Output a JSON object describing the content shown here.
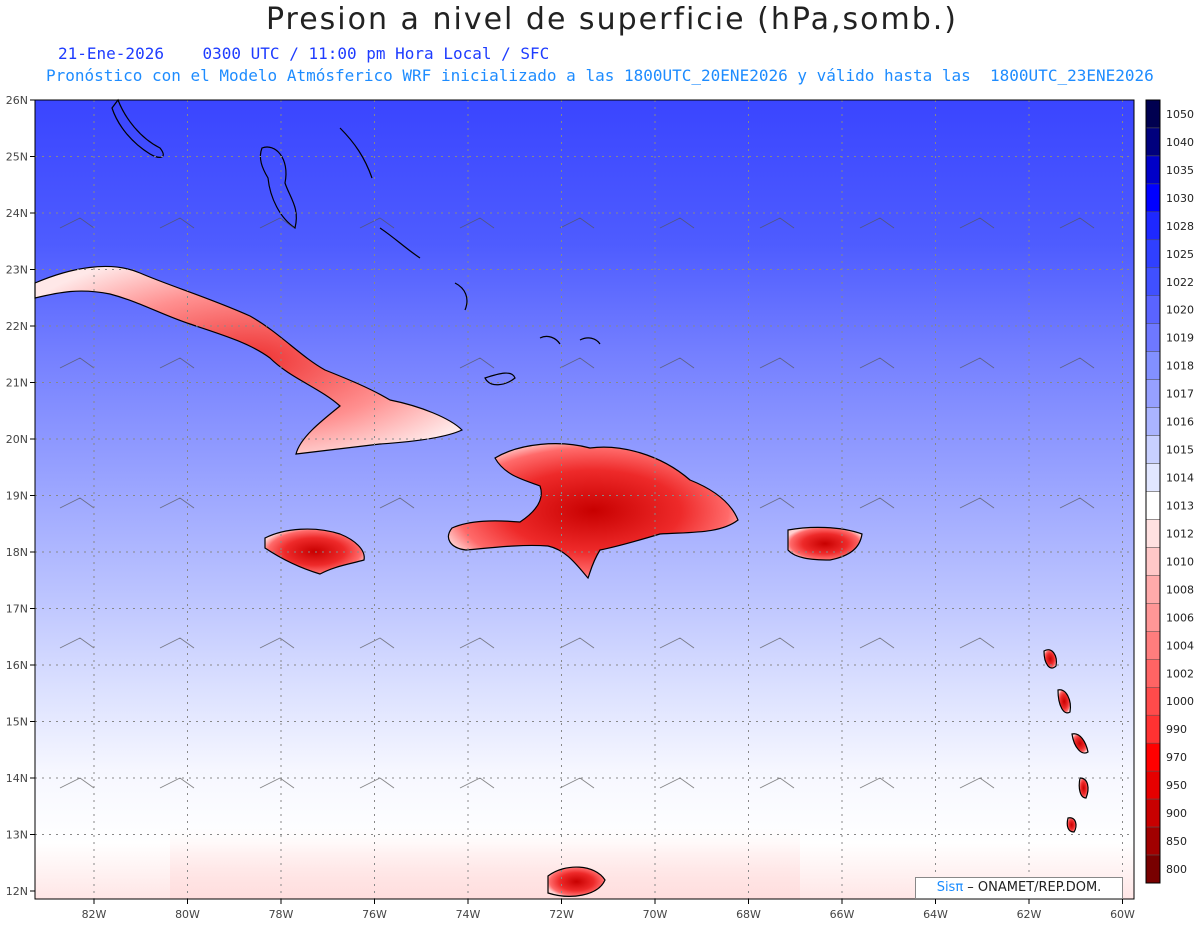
{
  "title": "Presion a nivel de superficie (hPa,somb.)",
  "date": "21-Ene-2026",
  "time_info": "0300 UTC / 11:00 pm Hora Local / SFC",
  "forecast_info": "Pronóstico con el Modelo Atmósferico WRF inicializado a las 1800UTC_20ENE2026 y válido hasta las  1800UTC_23ENE2026",
  "map": {
    "lat_labels": [
      "26N",
      "25N",
      "24N",
      "23N",
      "22N",
      "21N",
      "20N",
      "19N",
      "18N",
      "17N",
      "16N",
      "15N",
      "14N",
      "13N",
      "12N"
    ],
    "lon_labels": [
      "82W",
      "80W",
      "78W",
      "76W",
      "74W",
      "72W",
      "70W",
      "68W",
      "66W",
      "64W",
      "62W",
      "60W"
    ],
    "land_features": [
      "Cuba",
      "Hispaniola",
      "Jamaica",
      "Puerto Rico",
      "Bahamas",
      "Lesser Antilles"
    ],
    "gridlines": true,
    "wind_barbs": true
  },
  "colorbar": {
    "levels": [
      "1050",
      "1040",
      "1035",
      "1030",
      "1028",
      "1025",
      "1022",
      "1020",
      "1019",
      "1018",
      "1017",
      "1016",
      "1015",
      "1014",
      "1013",
      "1012",
      "1010",
      "1008",
      "1006",
      "1004",
      "1002",
      "1000",
      "990",
      "970",
      "950",
      "900",
      "850",
      "800"
    ],
    "colors": [
      "#000050",
      "#00007d",
      "#0000c8",
      "#0000ff",
      "#1e28ff",
      "#3040ff",
      "#4050ff",
      "#5a64ff",
      "#6e78ff",
      "#8290ff",
      "#96a0ff",
      "#aab4ff",
      "#c8d0ff",
      "#e1e6ff",
      "#ffffff",
      "#ffe1e1",
      "#ffc8c8",
      "#ffaaaa",
      "#ff9696",
      "#ff7d7d",
      "#ff6464",
      "#ff4b4b",
      "#ff3232",
      "#ff0000",
      "#e60000",
      "#c80000",
      "#a00000",
      "#780000"
    ]
  },
  "credit": {
    "brand": "Sisπ",
    "text": " – ONAMET/REP.DOM."
  }
}
